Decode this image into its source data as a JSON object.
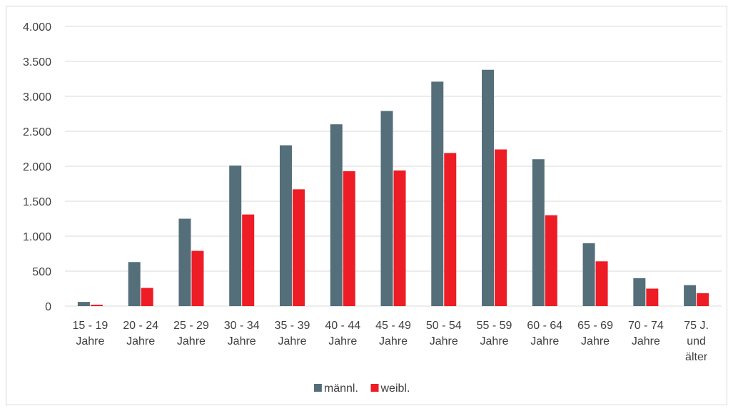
{
  "chart_data": {
    "type": "bar",
    "title": "",
    "xlabel": "",
    "ylabel": "",
    "ylim": [
      0,
      4000
    ],
    "yticks": [
      0,
      500,
      1000,
      1500,
      2000,
      2500,
      3000,
      3500,
      4000
    ],
    "ytick_labels": [
      "0",
      "500",
      "1.000",
      "1.500",
      "2.000",
      "2.500",
      "3.000",
      "3.500",
      "4.000"
    ],
    "grid": true,
    "legend_position": "bottom",
    "categories": [
      [
        "15 - 19",
        "Jahre"
      ],
      [
        "20 - 24",
        "Jahre"
      ],
      [
        "25 - 29",
        "Jahre"
      ],
      [
        "30 - 34",
        "Jahre"
      ],
      [
        "35 - 39",
        "Jahre"
      ],
      [
        "40 - 44",
        "Jahre"
      ],
      [
        "45 - 49",
        "Jahre"
      ],
      [
        "50 - 54",
        "Jahre"
      ],
      [
        "55 - 59",
        "Jahre"
      ],
      [
        "60 - 64",
        "Jahre"
      ],
      [
        "65 - 69",
        "Jahre"
      ],
      [
        "70 - 74",
        "Jahre"
      ],
      [
        "75 J.",
        "und",
        "älter"
      ]
    ],
    "series": [
      {
        "name": "männl.",
        "color": "#546e7a",
        "values": [
          60,
          630,
          1250,
          2010,
          2300,
          2600,
          2790,
          3210,
          3380,
          2100,
          900,
          400,
          300
        ]
      },
      {
        "name": "weibl.",
        "color": "#ee1c25",
        "values": [
          20,
          260,
          790,
          1310,
          1670,
          1930,
          1940,
          2190,
          2240,
          1300,
          640,
          250,
          185
        ]
      }
    ]
  }
}
